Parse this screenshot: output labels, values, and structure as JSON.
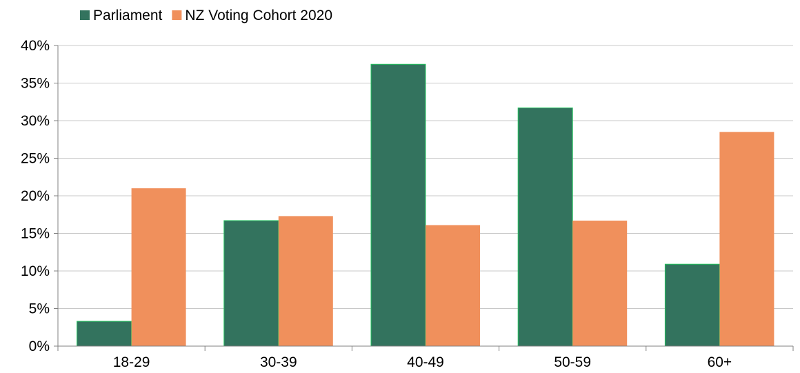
{
  "chart_data": {
    "type": "bar",
    "categories": [
      "18-29",
      "30-39",
      "40-49",
      "50-59",
      "60+"
    ],
    "series": [
      {
        "name": "Parliament",
        "values": [
          3.3,
          16.7,
          37.5,
          31.7,
          10.9
        ],
        "color": "#33735e"
      },
      {
        "name": "NZ Voting Cohort 2020",
        "values": [
          21.0,
          17.3,
          16.1,
          16.7,
          28.5
        ],
        "color": "#f0905c"
      }
    ],
    "y_ticks": [
      "0%",
      "5%",
      "10%",
      "15%",
      "20%",
      "25%",
      "30%",
      "35%",
      "40%"
    ],
    "ylim": [
      0,
      40
    ],
    "y_unit": "%",
    "grid": true,
    "legend_position": "top-left",
    "title": "",
    "xlabel": "",
    "ylabel": ""
  },
  "colors": {
    "gridline": "#c8c8c8",
    "axis": "#808080",
    "bar_border": "#22c55e"
  }
}
